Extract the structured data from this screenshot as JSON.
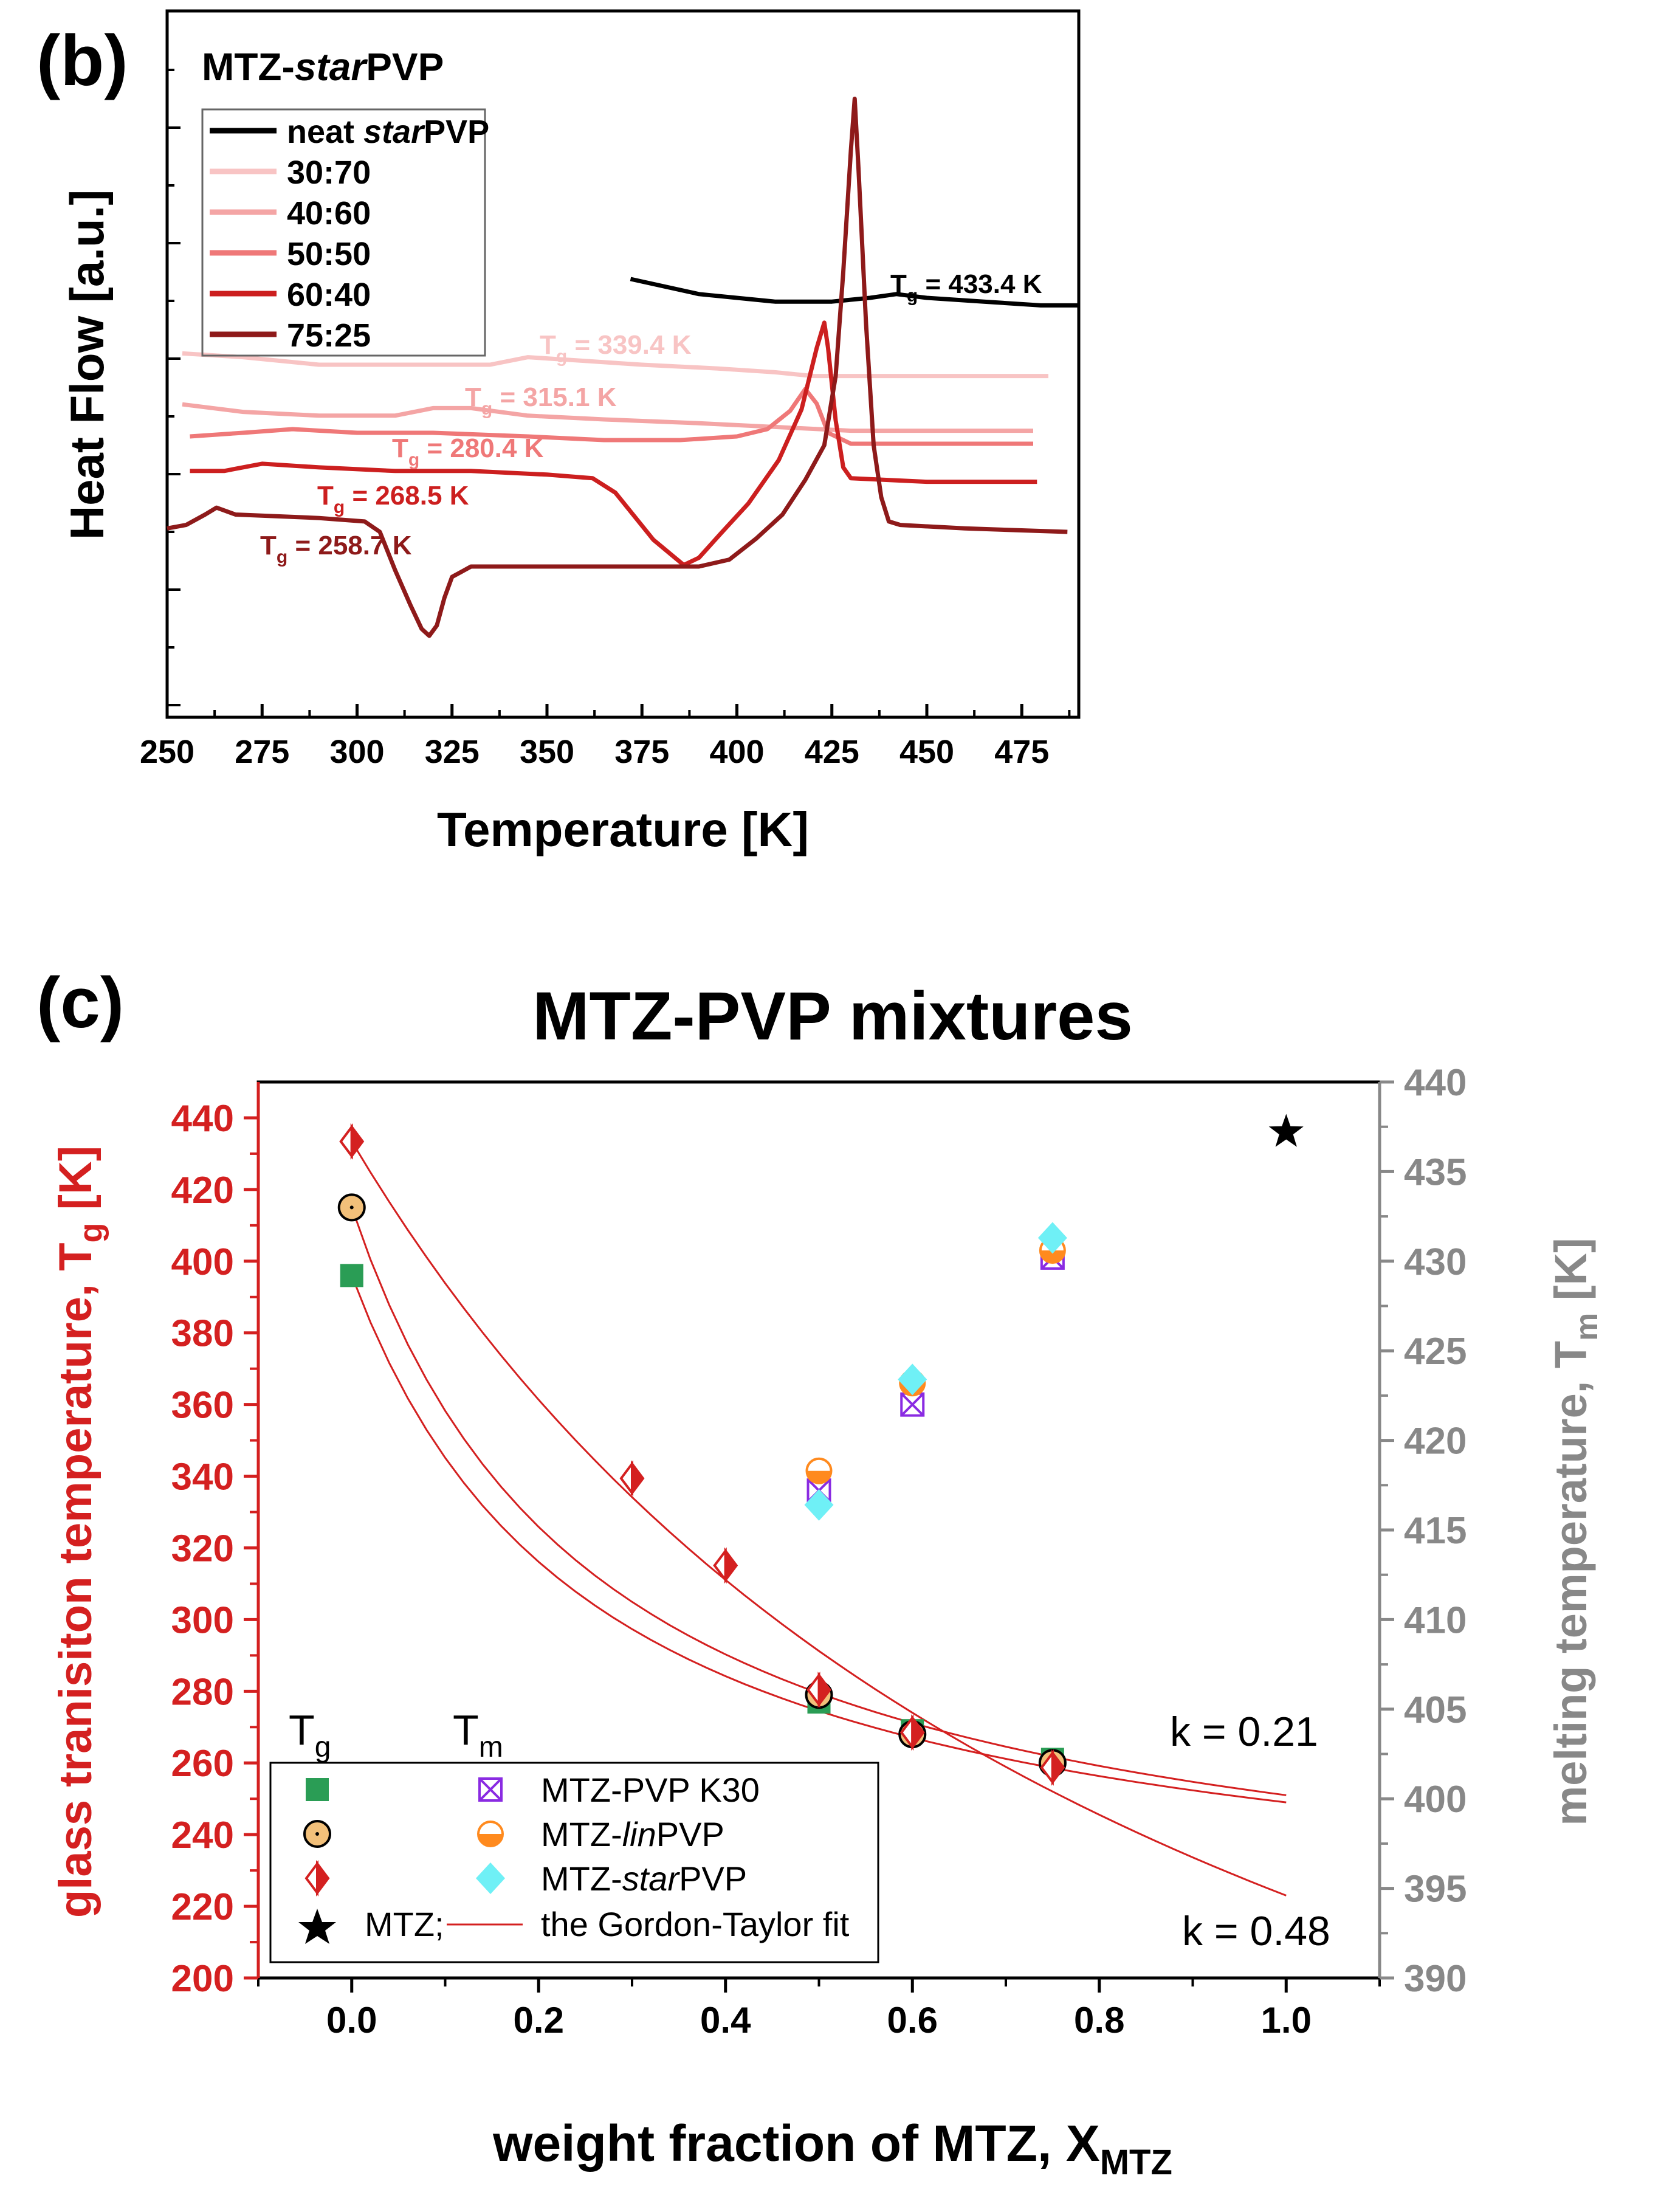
{
  "colors": {
    "black": "#000000",
    "red": "#d42020",
    "gray": "#888888",
    "c_neat": "#000000",
    "c_3070": "#f8c4c4",
    "c_4060": "#f4a5a5",
    "c_5050": "#ef7878",
    "c_6040": "#cc1f1f",
    "c_7525": "#8e1a1a",
    "k30": "#8a2be2",
    "lin": "#ff8a1e",
    "star_sym": "#6ff0f6",
    "sq": "#2a9d55",
    "circ": "#f2c07a"
  },
  "panel_b": {
    "label": "(b)",
    "ylabel": "Heat Flow [a.u.]",
    "xlabel": "Temperature [K]",
    "inset_title_pre": "MTZ-",
    "inset_title_ital": "star",
    "inset_title_post": "PVP",
    "legend": [
      {
        "pre": "neat ",
        "ital": "star",
        "post": "PVP",
        "color_key": "c_neat"
      },
      {
        "pre": "30:70",
        "ital": "",
        "post": "",
        "color_key": "c_3070"
      },
      {
        "pre": "40:60",
        "ital": "",
        "post": "",
        "color_key": "c_4060"
      },
      {
        "pre": "50:50",
        "ital": "",
        "post": "",
        "color_key": "c_5050"
      },
      {
        "pre": "60:40",
        "ital": "",
        "post": "",
        "color_key": "c_6040"
      },
      {
        "pre": "75:25",
        "ital": "",
        "post": "",
        "color_key": "c_7525"
      }
    ],
    "tg_labels": [
      {
        "text": "T",
        "sub": "g",
        "value": " = 433.4 K",
        "color_key": "c_neat"
      },
      {
        "text": "T",
        "sub": "g",
        "value": " = 339.4 K",
        "color_key": "c_3070"
      },
      {
        "text": "T",
        "sub": "g",
        "value": " = 315.1 K",
        "color_key": "c_4060"
      },
      {
        "text": "T",
        "sub": "g",
        "value": " = 280.4 K",
        "color_key": "c_5050"
      },
      {
        "text": "T",
        "sub": "g",
        "value": " = 268.5 K",
        "color_key": "c_6040"
      },
      {
        "text": "T",
        "sub": "g",
        "value": " =  258.7 K",
        "color_key": "c_7525"
      }
    ]
  },
  "panel_c": {
    "label": "(c)",
    "title": "MTZ-PVP mixtures",
    "ylabel_left": "glass tranisiton temperature, T",
    "ylabel_left_sub": "g",
    "ylabel_left_unit": " [K]",
    "ylabel_right": "melting temperature, T",
    "ylabel_right_sub": "m",
    "ylabel_right_unit": " [K]",
    "xlabel": "weight fraction of MTZ, X",
    "xlabel_sub": "MTZ",
    "k1": "k = 0.21",
    "k2": "k = 0.48",
    "legend_tg": "T",
    "legend_tg_sub": "g",
    "legend_tm": "T",
    "legend_tm_sub": "m",
    "legend_k30": "MTZ-PVP K30",
    "legend_lin_pre": "MTZ-",
    "legend_lin_ital": "lin",
    "legend_lin_post": "PVP",
    "legend_star_pre": "MTZ-",
    "legend_star_ital": "star",
    "legend_star_post": "PVP",
    "legend_mtz": "MTZ;",
    "legend_fit": "the Gordon-Taylor fit"
  },
  "chart_data": [
    {
      "type": "line",
      "title": "MTZ-starPVP",
      "xlabel": "Temperature [K]",
      "ylabel": "Heat Flow [a.u.]",
      "xlim": [
        250,
        490
      ],
      "xticks": [
        250,
        275,
        300,
        325,
        350,
        375,
        400,
        425,
        450,
        475
      ],
      "yticks_unlabeled": true,
      "series": [
        {
          "name": "neat starPVP",
          "tg": 433.4,
          "color_key": "c_neat",
          "points": [
            [
              372,
              30
            ],
            [
              390,
              26
            ],
            [
              410,
              24
            ],
            [
              425,
              24
            ],
            [
              435,
              25
            ],
            [
              442,
              26
            ],
            [
              450,
              25
            ],
            [
              465,
              24
            ],
            [
              480,
              23
            ],
            [
              490,
              23
            ]
          ]
        },
        {
          "name": "30:70",
          "tg": 339.4,
          "color_key": "c_3070",
          "points": [
            [
              254,
              28
            ],
            [
              270,
              27
            ],
            [
              290,
              25
            ],
            [
              320,
              25
            ],
            [
              335,
              25
            ],
            [
              345,
              27
            ],
            [
              360,
              26
            ],
            [
              375,
              25
            ],
            [
              395,
              24
            ],
            [
              410,
              23
            ],
            [
              420,
              22
            ],
            [
              440,
              22
            ],
            [
              460,
              22
            ],
            [
              482,
              22
            ]
          ]
        },
        {
          "name": "40:60",
          "tg": 315.1,
          "color_key": "c_4060",
          "points": [
            [
              254,
              29
            ],
            [
              270,
              27
            ],
            [
              290,
              26
            ],
            [
              310,
              26
            ],
            [
              320,
              28
            ],
            [
              330,
              28
            ],
            [
              345,
              26
            ],
            [
              365,
              25
            ],
            [
              390,
              24
            ],
            [
              410,
              23
            ],
            [
              430,
              22
            ],
            [
              455,
              22
            ],
            [
              478,
              22
            ]
          ]
        },
        {
          "name": "50:50",
          "tg": 280.4,
          "color_key": "c_5050",
          "points": [
            [
              256,
              32
            ],
            [
              270,
              33
            ],
            [
              283,
              34
            ],
            [
              300,
              33
            ],
            [
              320,
              33
            ],
            [
              345,
              32
            ],
            [
              365,
              31
            ],
            [
              385,
              31
            ],
            [
              400,
              32
            ],
            [
              408,
              34
            ],
            [
              414,
              39
            ],
            [
              418,
              45
            ],
            [
              421,
              41
            ],
            [
              424,
              33
            ],
            [
              430,
              30
            ],
            [
              450,
              30
            ],
            [
              478,
              30
            ]
          ]
        },
        {
          "name": "60:40",
          "tg": 268.5,
          "color_key": "c_6040",
          "points": [
            [
              256,
              41
            ],
            [
              265,
              41
            ],
            [
              275,
              43
            ],
            [
              290,
              42
            ],
            [
              310,
              41
            ],
            [
              330,
              41
            ],
            [
              350,
              40
            ],
            [
              362,
              39
            ],
            [
              368,
              35
            ],
            [
              378,
              22
            ],
            [
              386,
              15
            ],
            [
              390,
              17
            ],
            [
              396,
              24
            ],
            [
              403,
              32
            ],
            [
              411,
              44
            ],
            [
              417,
              58
            ],
            [
              421,
              75
            ],
            [
              423,
              82
            ],
            [
              424,
              75
            ],
            [
              426,
              55
            ],
            [
              428,
              42
            ],
            [
              430,
              39
            ],
            [
              450,
              38
            ],
            [
              479,
              38
            ]
          ]
        },
        {
          "name": "75:25",
          "tg": 258.7,
          "color_key": "c_7525",
          "points": [
            [
              250,
              36
            ],
            [
              255,
              37
            ],
            [
              260,
              40
            ],
            [
              263,
              42
            ],
            [
              268,
              40
            ],
            [
              290,
              39
            ],
            [
              302,
              38
            ],
            [
              306,
              35
            ],
            [
              310,
              24
            ],
            [
              314,
              14
            ],
            [
              317,
              7
            ],
            [
              319,
              5
            ],
            [
              321,
              8
            ],
            [
              323,
              16
            ],
            [
              325,
              22
            ],
            [
              330,
              25
            ],
            [
              350,
              25
            ],
            [
              370,
              25
            ],
            [
              390,
              25
            ],
            [
              398,
              27
            ],
            [
              405,
              33
            ],
            [
              412,
              40
            ],
            [
              418,
              50
            ],
            [
              423,
              60
            ],
            [
              426,
              80
            ],
            [
              428,
              110
            ],
            [
              430,
              145
            ],
            [
              431,
              160
            ],
            [
              432,
              140
            ],
            [
              434,
              95
            ],
            [
              436,
              60
            ],
            [
              438,
              45
            ],
            [
              440,
              38
            ],
            [
              443,
              37
            ],
            [
              460,
              36
            ],
            [
              487,
              35
            ]
          ]
        }
      ]
    },
    {
      "type": "scatter",
      "title": "MTZ-PVP mixtures",
      "xlabel": "weight fraction of MTZ, X_MTZ",
      "ylabel_left": "glass tranisiton temperature, T_g [K]",
      "ylabel_right": "melting temperature, T_m [K]",
      "xlim": [
        -0.1,
        1.1
      ],
      "ylim_left": [
        200,
        450
      ],
      "ylim_right": [
        390,
        440
      ],
      "xticks": [
        0.0,
        0.2,
        0.4,
        0.6,
        0.8,
        1.0
      ],
      "yticks_left": [
        200,
        220,
        240,
        260,
        280,
        300,
        320,
        340,
        360,
        380,
        400,
        420,
        440
      ],
      "yticks_right": [
        390,
        395,
        400,
        405,
        410,
        415,
        420,
        425,
        430,
        435,
        440
      ],
      "tg_series": [
        {
          "name": "MTZ-PVP K30",
          "marker": "square",
          "points": [
            [
              0.0,
              396
            ],
            [
              0.5,
              277
            ],
            [
              0.6,
              269
            ],
            [
              0.75,
              261
            ]
          ]
        },
        {
          "name": "MTZ-linPVP",
          "marker": "circle",
          "points": [
            [
              0.0,
              415
            ],
            [
              0.5,
              279
            ],
            [
              0.6,
              268
            ],
            [
              0.75,
              260
            ]
          ]
        },
        {
          "name": "MTZ-starPVP",
          "marker": "half-diamond",
          "points": [
            [
              0.0,
              433.4
            ],
            [
              0.3,
              339.4
            ],
            [
              0.4,
              315.1
            ],
            [
              0.5,
              280.4
            ],
            [
              0.6,
              268.5
            ],
            [
              0.75,
              258.7
            ]
          ]
        }
      ],
      "tm_series": [
        {
          "name": "MTZ-PVP K30",
          "marker": "boxed-x",
          "points": [
            [
              0.5,
              417.2
            ],
            [
              0.6,
              422.0
            ],
            [
              0.75,
              430.2
            ]
          ]
        },
        {
          "name": "MTZ-linPVP",
          "marker": "half-circle",
          "points": [
            [
              0.5,
              418.3
            ],
            [
              0.6,
              423.2
            ],
            [
              0.75,
              430.6
            ]
          ]
        },
        {
          "name": "MTZ-starPVP",
          "marker": "diamond",
          "points": [
            [
              0.5,
              416.4
            ],
            [
              0.6,
              423.4
            ],
            [
              0.75,
              431.3
            ]
          ]
        }
      ],
      "mtz_tm": [
        [
          1.0,
          437.2
        ]
      ],
      "fits": [
        {
          "name": "Gordon-Taylor fit k = 0.21",
          "k": 0.21,
          "tg_poly": 396,
          "tg_drug": 249
        },
        {
          "name": "Gordon-Taylor fit k = 0.21",
          "k": 0.21,
          "tg_poly": 415,
          "tg_drug": 251
        },
        {
          "name": "Gordon-Taylor fit k = 0.48",
          "k": 0.48,
          "tg_poly": 433.4,
          "tg_drug": 223
        }
      ]
    }
  ]
}
